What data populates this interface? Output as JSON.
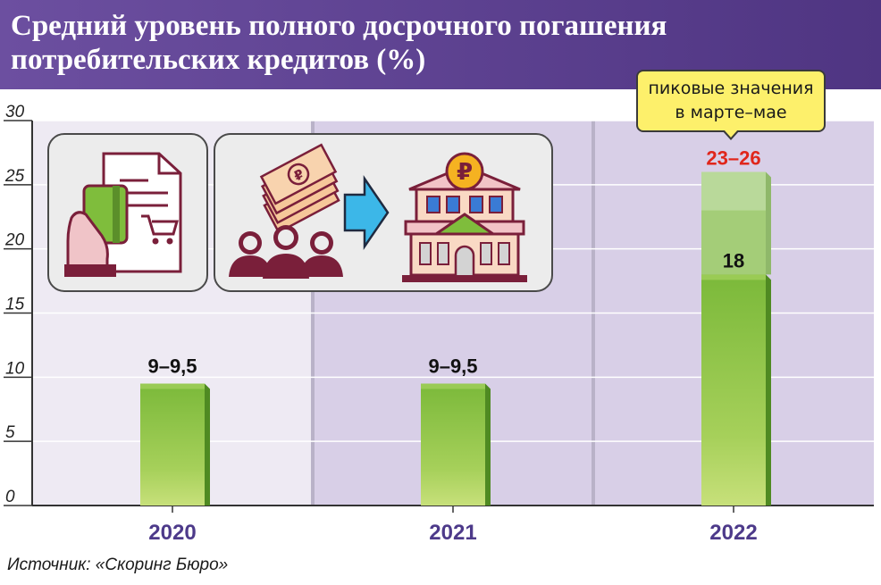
{
  "header": {
    "title": "Средний уровень полного досрочного погашения потребительских кредитов (%)"
  },
  "source": "Источник: «Скоринг Бюро»",
  "annotation": {
    "line1": "пиковые значения",
    "line2": "в марте–мае"
  },
  "colors": {
    "header": "#5b3d8c",
    "bar_green": "#7bb93a",
    "bar_light": "#c7e07a",
    "peak_label": "#e0261b",
    "year_label": "#4d3a8a",
    "panel_bg": "#ddd5ea"
  },
  "icons": [
    "credit-card-receipt-icon",
    "money-stack-icon",
    "people-icon",
    "arrow-right-icon",
    "bank-building-icon",
    "ruble-coin-icon"
  ],
  "chart_data": {
    "type": "bar",
    "categories": [
      "2020",
      "2021",
      "2022"
    ],
    "series": [
      {
        "values": [
          9.5,
          9.5,
          18
        ]
      }
    ],
    "ranges": [
      {
        "category": "2020",
        "low": 9,
        "high": 9.5
      },
      {
        "category": "2021",
        "low": 9,
        "high": 9.5
      },
      {
        "category": "2022",
        "low": 23,
        "high": 26
      }
    ],
    "data_labels": [
      "9–9,5",
      "9–9,5",
      "18"
    ],
    "peak_label": "23–26",
    "title": "Средний уровень полного досрочного погашения потребительских кредитов (%)",
    "ylim": [
      0,
      30
    ],
    "yticks": [
      0,
      5,
      10,
      15,
      20,
      25,
      30
    ],
    "grid": true
  }
}
